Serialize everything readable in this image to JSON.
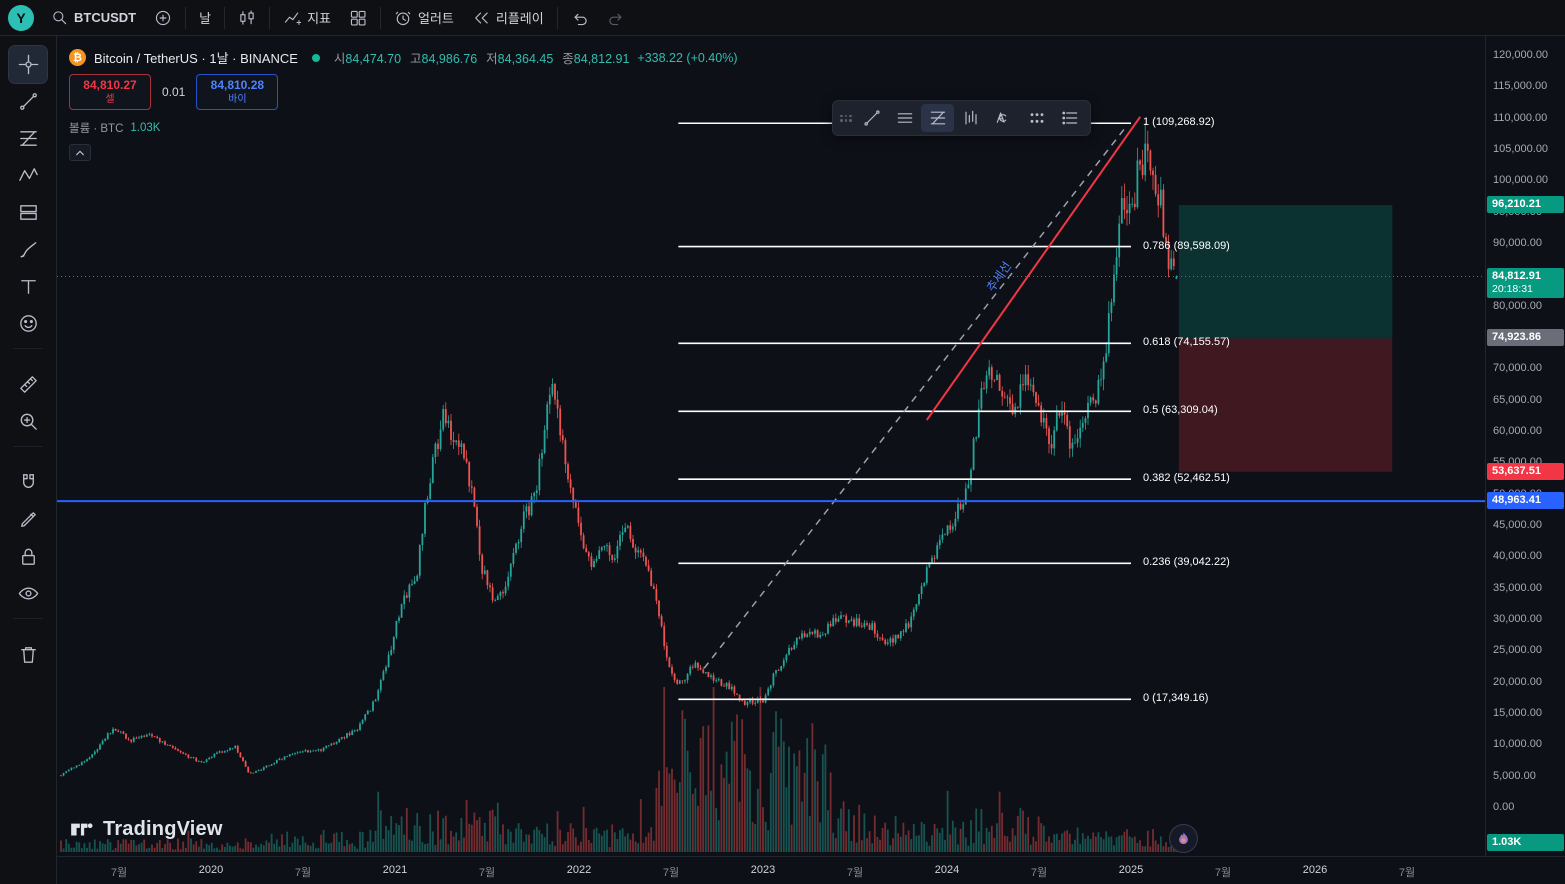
{
  "topbar": {
    "logo": "Y",
    "symbol": "BTCUSDT",
    "interval": "날",
    "indicators_label": "지표",
    "alerts_label": "얼러트",
    "replay_label": "리플레이"
  },
  "header": {
    "title": "Bitcoin / TetherUS · 1날 · BINANCE",
    "ohlc": [
      {
        "label": "시",
        "value": "84,474.70"
      },
      {
        "label": "고",
        "value": "84,986.76"
      },
      {
        "label": "저",
        "value": "84,364.45"
      },
      {
        "label": "종",
        "value": "84,812.91"
      }
    ],
    "change": "+338.22 (+0.40%)"
  },
  "trade": {
    "sell_price": "84,810.27",
    "sell_label": "셀",
    "qty": "0.01",
    "buy_price": "84,810.28",
    "buy_label": "바이"
  },
  "volume": {
    "label": "볼륨 · BTC",
    "value": "1.03K"
  },
  "labels": {
    "trend": "추세선"
  },
  "watermark": {
    "text": "TradingView"
  },
  "price_axis": {
    "min": 0,
    "max": 120000,
    "step": 5000
  },
  "badges": [
    {
      "name": "target",
      "text": "96,210.21",
      "price": 96210.21,
      "type": "teal"
    },
    {
      "name": "last-price",
      "text": "84,812.91",
      "sub": "20:18:31",
      "price": 84812.91,
      "type": "teal"
    },
    {
      "name": "entry",
      "text": "74,923.86",
      "price": 74923.86,
      "type": "gray"
    },
    {
      "name": "stop",
      "text": "53,637.51",
      "price": 53637.51,
      "type": "red"
    },
    {
      "name": "horizontal-line",
      "text": "48,963.41",
      "price": 48963.41,
      "type": "blue"
    },
    {
      "name": "volume",
      "text": "1.03K",
      "type": "teal",
      "bottom": true
    }
  ],
  "time_axis": {
    "ticks": [
      {
        "t": 2019.5,
        "label": "7월"
      },
      {
        "t": 2020.0,
        "label": "2020",
        "year": true
      },
      {
        "t": 2020.5,
        "label": "7월"
      },
      {
        "t": 2021.0,
        "label": "2021",
        "year": true
      },
      {
        "t": 2021.5,
        "label": "7월"
      },
      {
        "t": 2022.0,
        "label": "2022",
        "year": true
      },
      {
        "t": 2022.5,
        "label": "7월"
      },
      {
        "t": 2023.0,
        "label": "2023",
        "year": true
      },
      {
        "t": 2023.5,
        "label": "7월"
      },
      {
        "t": 2024.0,
        "label": "2024",
        "year": true
      },
      {
        "t": 2024.5,
        "label": "7월"
      },
      {
        "t": 2025.0,
        "label": "2025",
        "year": true
      },
      {
        "t": 2025.5,
        "label": "7월"
      },
      {
        "t": 2026.0,
        "label": "2026",
        "year": true
      },
      {
        "t": 2026.5,
        "label": "7월"
      }
    ]
  },
  "chart_data": {
    "type": "candlestick",
    "symbol": "BTCUSDT",
    "exchange": "BINANCE",
    "interval": "1D",
    "ohlc_current": {
      "open": 84474.7,
      "high": 84986.76,
      "low": 84364.45,
      "close": 84812.91,
      "change": 338.22,
      "change_pct": 0.4
    },
    "y_axis": {
      "min": 0,
      "max": 120000,
      "step": 5000
    },
    "x_axis": {
      "start": 2019.18,
      "end": 2026.9
    },
    "price_anchors": [
      [
        2019.18,
        5200
      ],
      [
        2019.35,
        8200
      ],
      [
        2019.47,
        12900
      ],
      [
        2019.56,
        10800
      ],
      [
        2019.67,
        11800
      ],
      [
        2019.78,
        9600
      ],
      [
        2019.95,
        7200
      ],
      [
        2020.04,
        8800
      ],
      [
        2020.13,
        9800
      ],
      [
        2020.21,
        5300
      ],
      [
        2020.3,
        6600
      ],
      [
        2020.45,
        8900
      ],
      [
        2020.6,
        9300
      ],
      [
        2020.7,
        10900
      ],
      [
        2020.8,
        12800
      ],
      [
        2020.88,
        16500
      ],
      [
        2020.96,
        23500
      ],
      [
        2021.02,
        31000
      ],
      [
        2021.07,
        34500
      ],
      [
        2021.12,
        37000
      ],
      [
        2021.16,
        47500
      ],
      [
        2021.21,
        55500
      ],
      [
        2021.27,
        63000
      ],
      [
        2021.31,
        59500
      ],
      [
        2021.36,
        58500
      ],
      [
        2021.42,
        50000
      ],
      [
        2021.47,
        38500
      ],
      [
        2021.53,
        33500
      ],
      [
        2021.58,
        34500
      ],
      [
        2021.64,
        39500
      ],
      [
        2021.7,
        46500
      ],
      [
        2021.76,
        49500
      ],
      [
        2021.82,
        63000
      ],
      [
        2021.86,
        66500
      ],
      [
        2021.9,
        59500
      ],
      [
        2021.96,
        50500
      ],
      [
        2022.02,
        42500
      ],
      [
        2022.08,
        38500
      ],
      [
        2022.13,
        42000
      ],
      [
        2022.19,
        39500
      ],
      [
        2022.24,
        45200
      ],
      [
        2022.3,
        42000
      ],
      [
        2022.37,
        39500
      ],
      [
        2022.44,
        29500
      ],
      [
        2022.5,
        21000
      ],
      [
        2022.56,
        19800
      ],
      [
        2022.63,
        23200
      ],
      [
        2022.7,
        21500
      ],
      [
        2022.77,
        19800
      ],
      [
        2022.83,
        19300
      ],
      [
        2022.88,
        16700
      ],
      [
        2022.94,
        16900
      ],
      [
        2023.0,
        17200
      ],
      [
        2023.06,
        21300
      ],
      [
        2023.12,
        24200
      ],
      [
        2023.18,
        26800
      ],
      [
        2023.25,
        28300
      ],
      [
        2023.32,
        27300
      ],
      [
        2023.38,
        29900
      ],
      [
        2023.45,
        30300
      ],
      [
        2023.52,
        29600
      ],
      [
        2023.59,
        28900
      ],
      [
        2023.66,
        26100
      ],
      [
        2023.73,
        27600
      ],
      [
        2023.8,
        29500
      ],
      [
        2023.86,
        35200
      ],
      [
        2023.93,
        40500
      ],
      [
        2024.0,
        44200
      ],
      [
        2024.06,
        47500
      ],
      [
        2024.12,
        52500
      ],
      [
        2024.18,
        64500
      ],
      [
        2024.24,
        70500
      ],
      [
        2024.3,
        65500
      ],
      [
        2024.37,
        64000
      ],
      [
        2024.43,
        68500
      ],
      [
        2024.5,
        64500
      ],
      [
        2024.56,
        58000
      ],
      [
        2024.62,
        64500
      ],
      [
        2024.68,
        57500
      ],
      [
        2024.74,
        61500
      ],
      [
        2024.8,
        65500
      ],
      [
        2024.85,
        69500
      ],
      [
        2024.9,
        82500
      ],
      [
        2024.95,
        96500
      ],
      [
        2025.0,
        95500
      ],
      [
        2025.04,
        101500
      ],
      [
        2025.08,
        105500
      ],
      [
        2025.12,
        99500
      ],
      [
        2025.16,
        97000
      ],
      [
        2025.2,
        87500
      ],
      [
        2025.24,
        83800
      ],
      [
        2025.27,
        84800
      ]
    ],
    "volume_profile": [
      {
        "until": 2020.3,
        "base": 8
      },
      {
        "until": 2020.9,
        "base": 13
      },
      {
        "until": 2021.55,
        "base": 26
      },
      {
        "until": 2021.95,
        "base": 20
      },
      {
        "until": 2022.42,
        "base": 17
      },
      {
        "until": 2023.38,
        "base": 85
      },
      {
        "until": 2023.65,
        "base": 34
      },
      {
        "until": 2024.15,
        "base": 22
      },
      {
        "until": 2024.6,
        "base": 26
      },
      {
        "until": 2027.0,
        "base": 15
      }
    ],
    "fib_retracement": {
      "x_range": [
        2022.54,
        2025.0
      ],
      "levels": [
        {
          "ratio": "1",
          "price": 109268.92,
          "label": "1 (109,268.92)"
        },
        {
          "ratio": "0.786",
          "price": 89598.09,
          "label": "0.786 (89,598.09)"
        },
        {
          "ratio": "0.618",
          "price": 74155.57,
          "label": "0.618 (74,155.57)"
        },
        {
          "ratio": "0.5",
          "price": 63309.04,
          "label": "0.5 (63,309.04)"
        },
        {
          "ratio": "0.382",
          "price": 52462.51,
          "label": "0.382 (52,462.51)"
        },
        {
          "ratio": "0.236",
          "price": 39042.22,
          "label": "0.236 (39,042.22)"
        },
        {
          "ratio": "0",
          "price": 17349.16,
          "label": "0 (17,349.16)"
        }
      ]
    },
    "lines": {
      "horizontal_blue": 48963.41,
      "current_price": 84812.91,
      "trend_line": {
        "from": [
          2023.89,
          61900
        ],
        "to": [
          2025.05,
          110300
        ],
        "color": "#f23645"
      },
      "dashed_line": {
        "from": [
          2022.68,
          22300
        ],
        "to": [
          2024.97,
          108600
        ],
        "color": "#9aa0ac"
      }
    },
    "position_tool": {
      "entry": 74923.86,
      "target": 96210.21,
      "stop": 53637.51,
      "x_range": [
        2025.26,
        2026.42
      ]
    }
  }
}
